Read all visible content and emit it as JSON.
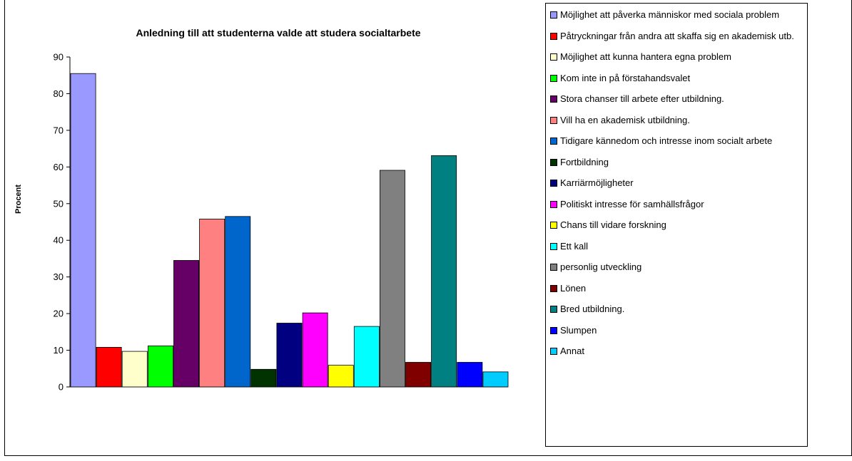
{
  "chart_data": {
    "type": "bar",
    "title": "Anledning till att studenterna valde att studera socialtarbete",
    "ylabel": "Procent",
    "xlabel": "",
    "ylim": [
      0,
      90
    ],
    "y_ticks": [
      "0",
      "10",
      "20",
      "30",
      "40",
      "50",
      "60",
      "70",
      "80",
      "90"
    ],
    "grid": false,
    "legend_position": "right",
    "series": [
      {
        "name": "Möjlighet att påverka människor med sociala problem",
        "value": 85.5,
        "color": "#9999FF"
      },
      {
        "name": "Påtryckningar från andra att skaffa sig en akademisk utb.",
        "value": 10.8,
        "color": "#FF0000"
      },
      {
        "name": "Möjlighet att kunna hantera egna problem",
        "value": 9.7,
        "color": "#FFFFCC"
      },
      {
        "name": "Kom inte in på förstahandsvalet",
        "value": 11.2,
        "color": "#00FF00"
      },
      {
        "name": "Stora chanser till arbete efter utbildning.",
        "value": 34.5,
        "color": "#660066"
      },
      {
        "name": "Vill ha en akademisk utbildning.",
        "value": 45.8,
        "color": "#FF8080"
      },
      {
        "name": "Tidigare kännedom och intresse inom socialt arbete",
        "value": 46.5,
        "color": "#0066CC"
      },
      {
        "name": "Fortbildning",
        "value": 4.8,
        "color": "#003300"
      },
      {
        "name": "Karriärmöjligheter",
        "value": 17.4,
        "color": "#000080"
      },
      {
        "name": "Politiskt intresse för samhällsfrågor",
        "value": 20.2,
        "color": "#FF00FF"
      },
      {
        "name": "Chans till vidare forskning",
        "value": 5.9,
        "color": "#FFFF00"
      },
      {
        "name": "Ett kall",
        "value": 16.5,
        "color": "#00FFFF"
      },
      {
        "name": "personlig utveckling",
        "value": 59.1,
        "color": "#808080"
      },
      {
        "name": "Lönen",
        "value": 6.7,
        "color": "#800000"
      },
      {
        "name": "Bred utbildning.",
        "value": 63.1,
        "color": "#008080"
      },
      {
        "name": "Slumpen",
        "value": 6.7,
        "color": "#0000FF"
      },
      {
        "name": "Annat",
        "value": 4.1,
        "color": "#00CCFF"
      }
    ]
  }
}
